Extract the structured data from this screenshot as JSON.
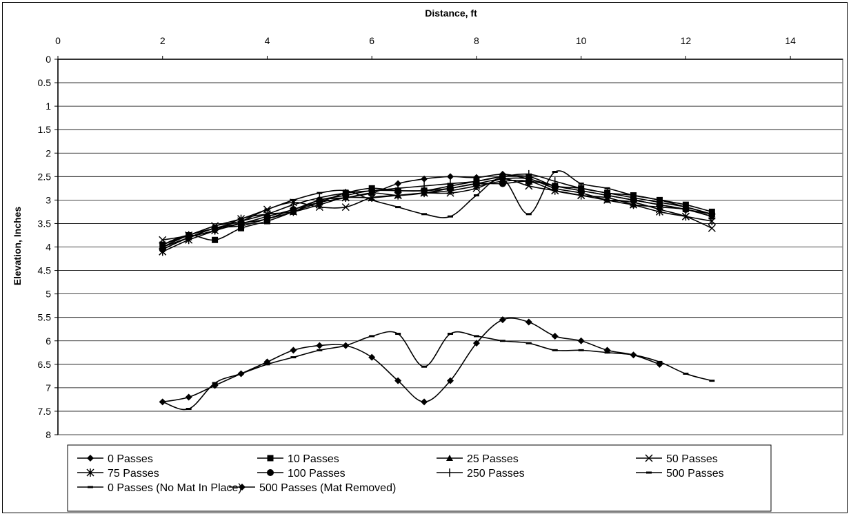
{
  "chart_data": {
    "type": "line",
    "xlabel": "Distance, ft",
    "ylabel": "Elevation, Inches",
    "xlim": [
      0,
      15
    ],
    "ylim": [
      0,
      8
    ],
    "y_inverted": true,
    "x_axis_position": "top",
    "grid": "horizontal",
    "legend_placement": "bottom",
    "x_ticks": [
      "0",
      "2",
      "4",
      "6",
      "8",
      "10",
      "12",
      "14"
    ],
    "x_tick_values": [
      0,
      2,
      4,
      6,
      8,
      10,
      12,
      14
    ],
    "y_ticks": [
      "0",
      "0.5",
      "1",
      "1.5",
      "2",
      "2.5",
      "3",
      "3.5",
      "4",
      "4.5",
      "5",
      "5.5",
      "6",
      "6.5",
      "7",
      "7.5",
      "8"
    ],
    "y_tick_values": [
      0,
      0.5,
      1,
      1.5,
      2,
      2.5,
      3,
      3.5,
      4,
      4.5,
      5,
      5.5,
      6,
      6.5,
      7,
      7.5,
      8
    ],
    "x": [
      2,
      2.5,
      3,
      3.5,
      4,
      4.5,
      5,
      5.5,
      6,
      6.5,
      7,
      7.5,
      8,
      8.5,
      9,
      9.5,
      10,
      10.5,
      11,
      11.5,
      12,
      12.5
    ],
    "series": [
      {
        "name": "0 Passes",
        "marker": "diamond",
        "values": [
          4.05,
          3.8,
          3.65,
          3.5,
          3.4,
          3.2,
          3.05,
          2.95,
          2.85,
          2.65,
          2.55,
          2.5,
          2.52,
          2.45,
          2.55,
          2.7,
          2.8,
          2.9,
          3.0,
          3.1,
          3.2,
          3.35
        ]
      },
      {
        "name": "10 Passes",
        "marker": "square",
        "values": [
          3.95,
          3.75,
          3.85,
          3.6,
          3.45,
          3.25,
          3.05,
          2.85,
          2.75,
          2.8,
          2.8,
          2.7,
          2.6,
          2.5,
          2.5,
          2.7,
          2.75,
          2.85,
          2.9,
          3.0,
          3.1,
          3.25
        ]
      },
      {
        "name": "25 Passes",
        "marker": "triangle",
        "values": [
          4.0,
          3.8,
          3.6,
          3.55,
          3.4,
          3.25,
          3.0,
          2.95,
          2.85,
          2.9,
          2.85,
          2.75,
          2.65,
          2.55,
          2.55,
          2.75,
          2.85,
          3.0,
          3.1,
          3.15,
          3.2,
          3.35
        ]
      },
      {
        "name": "50 Passes",
        "marker": "x",
        "values": [
          3.85,
          3.75,
          3.55,
          3.45,
          3.2,
          3.05,
          3.15,
          3.15,
          2.95,
          2.9,
          2.85,
          2.85,
          2.75,
          2.55,
          2.7,
          2.8,
          2.9,
          3.0,
          3.05,
          3.2,
          3.35,
          3.6
        ]
      },
      {
        "name": "75 Passes",
        "marker": "asterisk",
        "values": [
          4.1,
          3.85,
          3.65,
          3.4,
          3.3,
          3.25,
          3.1,
          2.95,
          2.95,
          2.9,
          2.85,
          2.8,
          2.7,
          2.6,
          2.6,
          2.8,
          2.9,
          2.95,
          3.1,
          3.25,
          3.35,
          3.45
        ]
      },
      {
        "name": "100 Passes",
        "marker": "circle",
        "values": [
          4.05,
          3.8,
          3.6,
          3.5,
          3.35,
          3.2,
          3.0,
          2.9,
          2.8,
          2.8,
          2.8,
          2.75,
          2.65,
          2.65,
          2.6,
          2.7,
          2.8,
          2.9,
          3.0,
          3.1,
          3.2,
          3.3
        ]
      },
      {
        "name": "250 Passes",
        "marker": "plus",
        "values": [
          4.0,
          3.75,
          3.6,
          3.45,
          3.3,
          3.1,
          2.95,
          2.85,
          2.8,
          2.75,
          2.7,
          2.65,
          2.6,
          2.5,
          2.45,
          2.6,
          2.75,
          2.85,
          2.95,
          3.05,
          3.15,
          3.3
        ]
      },
      {
        "name": "500 Passes",
        "marker": "dash",
        "values": [
          3.95,
          3.75,
          3.55,
          3.4,
          3.2,
          3.0,
          2.85,
          2.8,
          3.0,
          3.15,
          3.3,
          3.35,
          2.9,
          2.55,
          3.3,
          2.4,
          2.65,
          2.75,
          2.9,
          3.0,
          3.15,
          3.3
        ]
      },
      {
        "name": "0 Passes (No Mat In Place)",
        "marker": "dash",
        "values": [
          7.3,
          7.45,
          6.9,
          6.7,
          6.5,
          6.35,
          6.2,
          6.1,
          5.9,
          5.85,
          6.55,
          5.85,
          5.9,
          6.0,
          6.05,
          6.2,
          6.2,
          6.25,
          6.3,
          6.45,
          6.7,
          6.85
        ]
      },
      {
        "name": "500 Passes (Mat Removed)",
        "marker": "diamond",
        "values": [
          7.3,
          7.2,
          6.95,
          6.7,
          6.45,
          6.2,
          6.1,
          6.1,
          6.35,
          6.85,
          7.3,
          6.85,
          6.05,
          5.55,
          5.6,
          5.9,
          6.0,
          6.2,
          6.3,
          6.5,
          null,
          null
        ]
      }
    ]
  }
}
